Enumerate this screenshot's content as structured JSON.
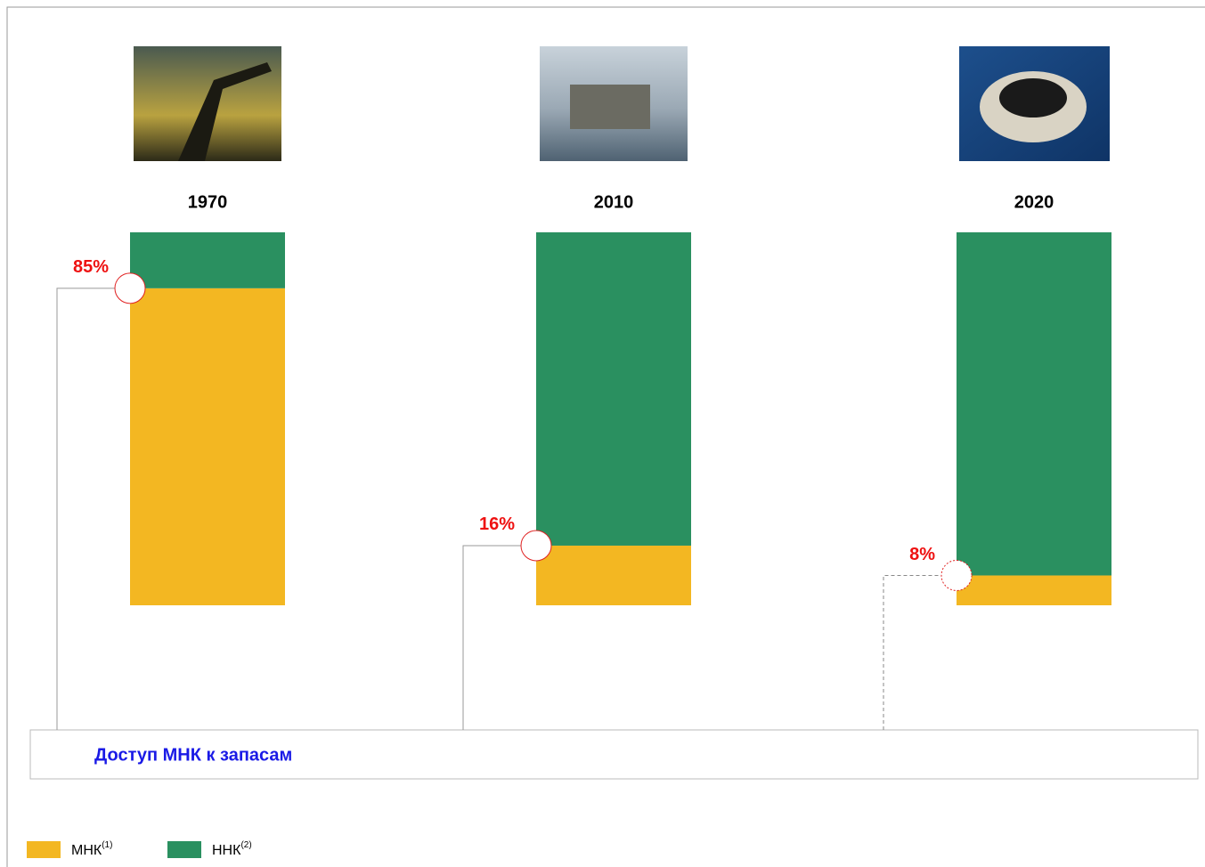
{
  "chart_data": {
    "type": "stacked_bar",
    "categories": [
      "1970",
      "2010",
      "2020"
    ],
    "ylim": [
      0,
      100
    ],
    "series": [
      {
        "name": "МНК",
        "note": "(1)",
        "color": "#f3b722",
        "values": [
          85,
          16,
          8
        ],
        "value_labels": [
          "85%",
          "16%",
          "8%"
        ]
      },
      {
        "name": "ННК",
        "note": "(2)",
        "color": "#2a9060",
        "values": [
          15,
          84,
          92
        ]
      }
    ],
    "annotation": "Доступ МНК к запасам"
  }
}
